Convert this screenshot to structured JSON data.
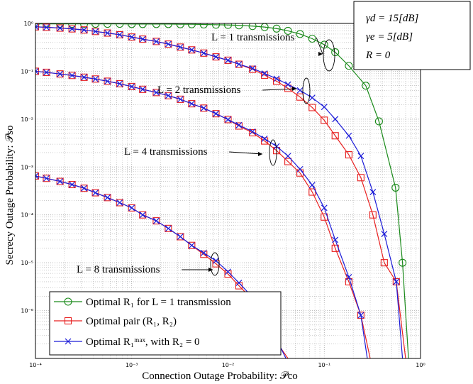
{
  "chart_data": {
    "type": "line",
    "xlabel": "Connection Outage Probability: 𝒫co",
    "ylabel": "Secrecy Outage Probability: 𝒫so",
    "xscale": "log",
    "yscale": "log",
    "xlim": [
      0.0001,
      1
    ],
    "ylim": [
      1e-07,
      1
    ],
    "x_ticks": [
      "10⁻⁴",
      "10⁻³",
      "10⁻²",
      "10⁻¹",
      "10⁰"
    ],
    "y_ticks": [
      "10⁰",
      "10⁻¹",
      "10⁻²",
      "10⁻³",
      "10⁻⁴",
      "10⁻⁵",
      "10⁻⁶"
    ],
    "grid": true,
    "legend_position": "bottom-left",
    "params": [
      "γd = 15[dB]",
      "γe = 5[dB]",
      "R = 0"
    ],
    "annotations": [
      "L = 1 transmissions",
      "L = 2 transmissions",
      "L = 4 transmissions",
      "L = 8 transmissions"
    ],
    "series": [
      {
        "name": "Optimal R1 for L = 1 transmission",
        "color": "#1a8a1a",
        "marker": "circle",
        "x": [
          0.0001,
          0.00013,
          0.00018,
          0.00024,
          0.00032,
          0.00042,
          0.00056,
          0.00075,
          0.001,
          0.0013,
          0.0018,
          0.0024,
          0.0032,
          0.0042,
          0.0056,
          0.0075,
          0.01,
          0.013,
          0.018,
          0.024,
          0.032,
          0.042,
          0.056,
          0.075,
          0.1,
          0.13,
          0.18,
          0.27,
          0.37,
          0.55,
          0.65,
          0.75
        ],
        "y": [
          0.98,
          0.98,
          0.98,
          0.98,
          0.98,
          0.98,
          0.98,
          0.98,
          0.97,
          0.97,
          0.97,
          0.97,
          0.96,
          0.96,
          0.95,
          0.94,
          0.93,
          0.91,
          0.88,
          0.84,
          0.78,
          0.7,
          0.6,
          0.48,
          0.36,
          0.25,
          0.13,
          0.05,
          0.009,
          0.00037,
          1e-05,
          1e-07
        ]
      },
      {
        "name": "Optimal pair (R1, R2)",
        "color": "#e82020",
        "marker": "square",
        "segments": [
          {
            "label": "L = 1",
            "x": [
              0.0001,
              0.00013,
              0.00018,
              0.00024,
              0.00032,
              0.00042,
              0.00056,
              0.00075,
              0.001,
              0.0013,
              0.0018,
              0.0024,
              0.0032,
              0.0042,
              0.0056,
              0.0075,
              0.01,
              0.013,
              0.018,
              0.024,
              0.032,
              0.042,
              0.056,
              0.075,
              0.1,
              0.13,
              0.18,
              0.24,
              0.32,
              0.42,
              0.56,
              0.7
            ],
            "y": [
              0.85,
              0.83,
              0.8,
              0.77,
              0.73,
              0.68,
              0.63,
              0.58,
              0.52,
              0.47,
              0.42,
              0.37,
              0.32,
              0.28,
              0.24,
              0.2,
              0.17,
              0.14,
              0.11,
              0.083,
              0.062,
              0.044,
              0.029,
              0.0175,
              0.0095,
              0.0045,
              0.0018,
              0.0006,
              0.0001,
              1e-05,
              4e-06,
              1e-07
            ]
          },
          {
            "label": "L = 2",
            "x": [
              0.0001,
              0.00013,
              0.00018,
              0.00024,
              0.00032,
              0.00042,
              0.00056,
              0.00075,
              0.001,
              0.0013,
              0.0018,
              0.0024,
              0.0032,
              0.0042,
              0.0056,
              0.0075,
              0.01,
              0.013,
              0.018,
              0.024,
              0.032,
              0.042,
              0.056,
              0.075,
              0.1,
              0.13,
              0.18,
              0.24,
              0.3
            ],
            "y": [
              0.1,
              0.095,
              0.088,
              0.082,
              0.075,
              0.069,
              0.062,
              0.055,
              0.048,
              0.042,
              0.036,
              0.031,
              0.026,
              0.021,
              0.017,
              0.013,
              0.0098,
              0.0072,
              0.0052,
              0.0035,
              0.0022,
              0.0013,
              0.00075,
              0.0003,
              9e-05,
              2e-05,
              4e-06,
              8e-07,
              1e-07
            ]
          },
          {
            "label": "L = 4",
            "x": [
              0.0001,
              0.00013,
              0.00018,
              0.00024,
              0.00032,
              0.00042,
              0.00056,
              0.00075,
              0.001,
              0.0013,
              0.0018,
              0.0024,
              0.0032,
              0.0042,
              0.0056,
              0.0075,
              0.01,
              0.013,
              0.018,
              0.024,
              0.032,
              0.042
            ],
            "y": [
              0.00065,
              0.00058,
              0.0005,
              0.00043,
              0.00036,
              0.00029,
              0.00023,
              0.00018,
              0.00014,
              0.0001,
              7.5e-05,
              5.2e-05,
              3.5e-05,
              2.3e-05,
              1.5e-05,
              9.5e-06,
              5.8e-06,
              3.3e-06,
              1.7e-06,
              7e-07,
              2.2e-07,
              1e-07
            ]
          }
        ]
      },
      {
        "name": "Optimal R1max, with R2 = 0",
        "color": "#1c1cd8",
        "marker": "x",
        "segments": [
          {
            "label": "L = 1",
            "x": [
              0.0001,
              0.00013,
              0.00018,
              0.00024,
              0.00032,
              0.00042,
              0.00056,
              0.00075,
              0.001,
              0.0013,
              0.0018,
              0.0024,
              0.0032,
              0.0042,
              0.0056,
              0.0075,
              0.01,
              0.013,
              0.018,
              0.024,
              0.032,
              0.042,
              0.056,
              0.075,
              0.1,
              0.13,
              0.18,
              0.24,
              0.32,
              0.42,
              0.56,
              0.65
            ],
            "y": [
              0.85,
              0.83,
              0.8,
              0.77,
              0.73,
              0.68,
              0.63,
              0.58,
              0.52,
              0.47,
              0.42,
              0.37,
              0.32,
              0.28,
              0.24,
              0.2,
              0.17,
              0.14,
              0.115,
              0.09,
              0.07,
              0.053,
              0.04,
              0.028,
              0.018,
              0.01,
              0.0045,
              0.0017,
              0.0003,
              4e-05,
              4e-06,
              1e-07
            ]
          },
          {
            "label": "L = 2",
            "x": [
              0.0001,
              0.00013,
              0.00018,
              0.00024,
              0.00032,
              0.00042,
              0.00056,
              0.00075,
              0.001,
              0.0013,
              0.0018,
              0.0024,
              0.0032,
              0.0042,
              0.0056,
              0.0075,
              0.01,
              0.013,
              0.018,
              0.024,
              0.032,
              0.042,
              0.056,
              0.075,
              0.1,
              0.13,
              0.18,
              0.24,
              0.28
            ],
            "y": [
              0.1,
              0.095,
              0.088,
              0.082,
              0.075,
              0.069,
              0.062,
              0.055,
              0.048,
              0.042,
              0.036,
              0.031,
              0.026,
              0.021,
              0.017,
              0.013,
              0.0098,
              0.0075,
              0.0055,
              0.0039,
              0.0027,
              0.0017,
              0.0009,
              0.00042,
              0.00014,
              3e-05,
              5e-06,
              8e-07,
              1e-07
            ]
          },
          {
            "label": "L = 4",
            "x": [
              0.0001,
              0.00013,
              0.00018,
              0.00024,
              0.00032,
              0.00042,
              0.00056,
              0.00075,
              0.001,
              0.0013,
              0.0018,
              0.0024,
              0.0032,
              0.0042,
              0.0056,
              0.0075,
              0.01,
              0.013,
              0.018,
              0.024,
              0.032,
              0.04
            ],
            "y": [
              0.00065,
              0.00058,
              0.0005,
              0.00043,
              0.00036,
              0.00029,
              0.00023,
              0.00018,
              0.00014,
              0.0001,
              7.5e-05,
              5.2e-05,
              3.5e-05,
              2.3e-05,
              1.6e-05,
              1.1e-05,
              6.5e-06,
              3.8e-06,
              1.9e-06,
              8e-07,
              2.5e-07,
              1e-07
            ]
          }
        ]
      }
    ]
  },
  "legend": {
    "items": [
      {
        "label": "Optimal R₁  for  L = 1  transmission"
      },
      {
        "label": "Optimal pair  (R₁, R₂)"
      },
      {
        "label": "Optimal R₁ᵐᵃˣ, with R₂ = 0"
      }
    ]
  }
}
